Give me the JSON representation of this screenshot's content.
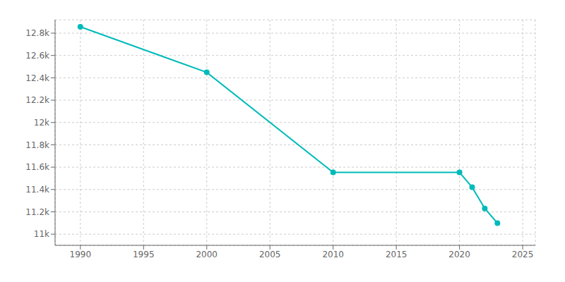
{
  "chart_data": {
    "type": "line",
    "x": [
      1990,
      2000,
      2010,
      2020,
      2021,
      2022,
      2023
    ],
    "values": [
      12857,
      12449,
      11553,
      11553,
      11420,
      11230,
      11099
    ],
    "color": "#00BABA",
    "marker": "circle",
    "xlim": [
      1988,
      2026
    ],
    "xticks": [
      1990,
      1995,
      2000,
      2005,
      2010,
      2015,
      2020,
      2025
    ],
    "ylim": [
      10900,
      12920
    ],
    "yticks": [
      {
        "value": 11000,
        "label": "11k"
      },
      {
        "value": 11200,
        "label": "11.2k"
      },
      {
        "value": 11400,
        "label": "11.4k"
      },
      {
        "value": 11600,
        "label": "11.6k"
      },
      {
        "value": 11800,
        "label": "11.8k"
      },
      {
        "value": 12000,
        "label": "12k"
      },
      {
        "value": 12200,
        "label": "12.2k"
      },
      {
        "value": 12400,
        "label": "12.4k"
      },
      {
        "value": 12600,
        "label": "12.6k"
      },
      {
        "value": 12800,
        "label": "12.8k"
      }
    ],
    "grid": true
  }
}
